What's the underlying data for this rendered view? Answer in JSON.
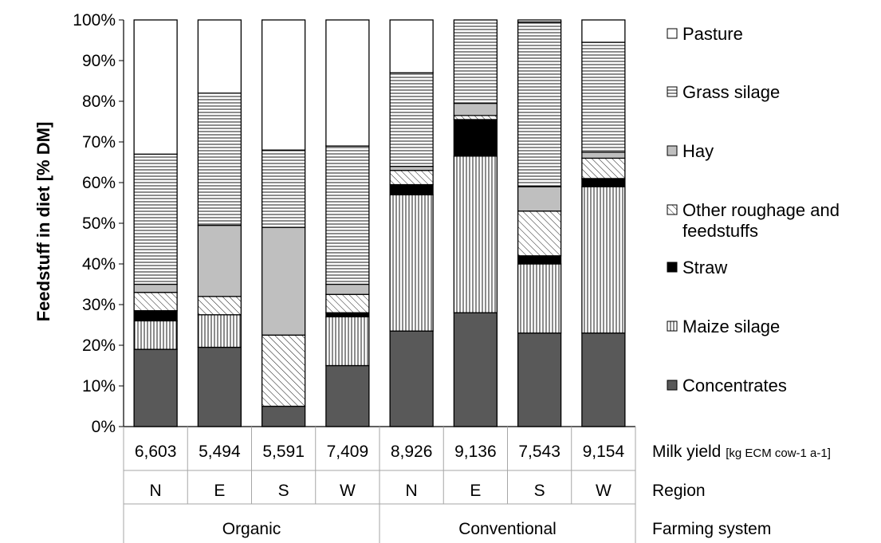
{
  "chart_data": {
    "type": "bar",
    "stacked": true,
    "normalized": true,
    "title": "",
    "xlabel": "",
    "ylabel": "Feedstuff in diet [% DM]",
    "ylim": [
      0,
      100
    ],
    "yticks": [
      "0%",
      "10%",
      "20%",
      "30%",
      "40%",
      "50%",
      "60%",
      "70%",
      "80%",
      "90%",
      "100%"
    ],
    "grid": false,
    "legend_position": "right",
    "categories": [
      "Organic N",
      "Organic E",
      "Organic S",
      "Organic W",
      "Conventional N",
      "Conventional E",
      "Conventional S",
      "Conventional W"
    ],
    "series": [
      {
        "name": "Concentrates",
        "pattern": "solid-dark",
        "color": "#595959",
        "values": [
          19,
          19.5,
          5,
          15,
          23.5,
          28,
          23,
          23
        ]
      },
      {
        "name": "Maize silage",
        "pattern": "vertical-lines",
        "color": "#ffffff",
        "values": [
          7,
          8,
          0,
          12,
          33.5,
          38.5,
          17,
          36
        ]
      },
      {
        "name": "Straw",
        "pattern": "solid-black",
        "color": "#000000",
        "values": [
          2.5,
          0,
          0,
          1,
          2.5,
          9,
          2,
          2
        ]
      },
      {
        "name": "Other roughage and feedstuffs",
        "pattern": "diagonal-lines",
        "color": "#ffffff",
        "values": [
          4.5,
          4.5,
          17.5,
          4.5,
          3.5,
          1,
          11,
          5
        ]
      },
      {
        "name": "Hay",
        "pattern": "solid-light",
        "color": "#bfbfbf",
        "values": [
          2,
          17.5,
          26.5,
          2.5,
          1,
          3,
          6,
          1.5
        ]
      },
      {
        "name": "Grass silage",
        "pattern": "horizontal-lines",
        "color": "#ffffff",
        "values": [
          32,
          32.5,
          19,
          34,
          23,
          20.5,
          40.5,
          27
        ]
      },
      {
        "name": "Pasture",
        "pattern": "none",
        "color": "#ffffff",
        "values": [
          33,
          18,
          32,
          31,
          13,
          0,
          0.5,
          5.5
        ]
      }
    ],
    "table_rows": [
      {
        "label": "Milk yield",
        "unit": "[kg ECM cow-1 a-1]",
        "values": [
          "6,603",
          "5,494",
          "5,591",
          "7,409",
          "8,926",
          "9,136",
          "7,543",
          "9,154"
        ]
      },
      {
        "label": "Region",
        "values": [
          "N",
          "E",
          "S",
          "W",
          "N",
          "E",
          "S",
          "W"
        ]
      },
      {
        "label": "Farming system",
        "groups": [
          "Organic",
          "Conventional"
        ]
      }
    ]
  }
}
